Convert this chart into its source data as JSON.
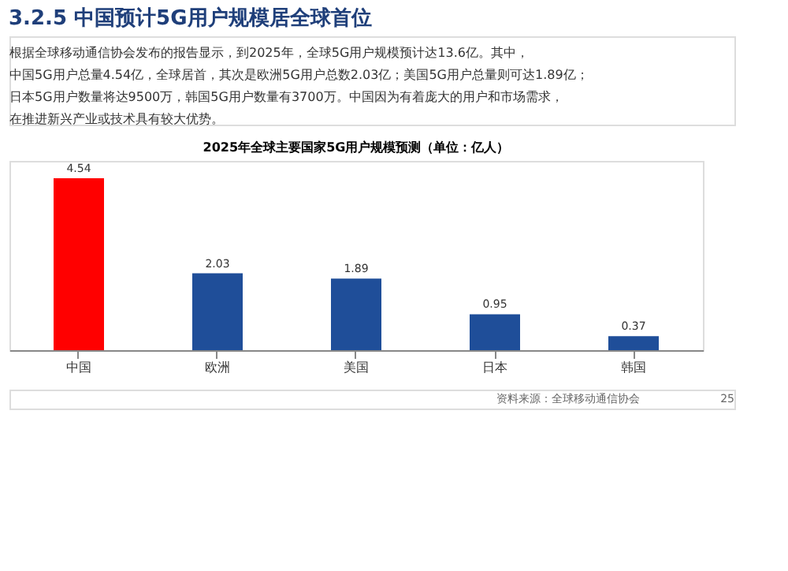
{
  "chart_data": {
    "type": "bar",
    "title": "3.2.5 中国预计5G用户规模居全球首位",
    "subtitle": "2025年全球主要国家5G用户规模预测（单位：亿人）",
    "categories": [
      "中国",
      "欧洲",
      "美国",
      "日本",
      "韩国"
    ],
    "values": [
      4.54,
      2.03,
      1.89,
      0.95,
      0.37
    ],
    "colors": [
      "#ff0000",
      "#1f4e99",
      "#1f4e99",
      "#1f4e99",
      "#1f4e99"
    ],
    "data_labels": true,
    "annotations": [
      "根据全球移动通信协会发布的报告显示，到2025年，全球5G用户规模预计达13.6亿。其中，中国5G用户总量4.54亿，全球居首，其次是欧洲5G用户总数2.03亿；美国5G用户总量则可达1.89亿；日本5G用户数量将达9500万，韩国5G用户数量有3700万。中国因为有着庞大的用户和市场需求，在推进新兴产业或技术具有较大优势。",
      "资料来源：全球移动通信协会",
      "25"
    ]
  }
}
